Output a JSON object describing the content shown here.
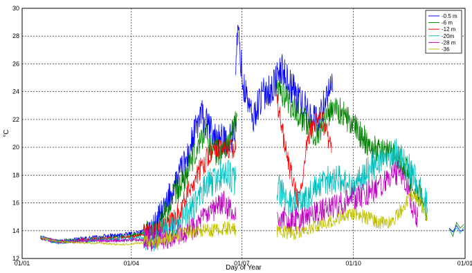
{
  "chart_data": {
    "type": "line",
    "title": "",
    "xlabel": "Day of Year",
    "ylabel": "°C",
    "xlim": [
      0,
      365
    ],
    "ylim": [
      12,
      30
    ],
    "grid": true,
    "legend_position": "top-right",
    "x_ticks": [
      {
        "value": 0,
        "label": "01/01"
      },
      {
        "value": 90,
        "label": "01/04"
      },
      {
        "value": 181,
        "label": "01/07"
      },
      {
        "value": 273,
        "label": "01/10"
      },
      {
        "value": 365,
        "label": "01/01"
      }
    ],
    "y_ticks": [
      12,
      14,
      16,
      18,
      20,
      22,
      24,
      26,
      28,
      30
    ],
    "series": [
      {
        "name": "-0.5 m",
        "color": "#0000ff",
        "segments": [
          [
            [
              15,
              13.6
            ],
            [
              20,
              13.4
            ],
            [
              25,
              13.3
            ],
            [
              30,
              13.2
            ],
            [
              60,
              13.5
            ],
            [
              85,
              13.7
            ],
            [
              108,
              14.0
            ],
            [
              112,
              14.6
            ],
            [
              116,
              15.2
            ],
            [
              120,
              16.0
            ],
            [
              124,
              17.0
            ],
            [
              128,
              17.6
            ],
            [
              132,
              18.4
            ],
            [
              136,
              19.2
            ],
            [
              140,
              20.4
            ],
            [
              144,
              21.5
            ],
            [
              148,
              22.4
            ],
            [
              150,
              21.8
            ],
            [
              154,
              21.4
            ],
            [
              158,
              20.8
            ],
            [
              162,
              20.6
            ],
            [
              166,
              20.4
            ],
            [
              170,
              20.5
            ],
            [
              174,
              20.7
            ],
            [
              176,
              21.5
            ]
          ],
          [
            [
              176,
              26.0
            ],
            [
              177,
              27.2
            ],
            [
              178,
              28.4
            ],
            [
              179,
              27.6
            ],
            [
              180,
              26.4
            ],
            [
              181,
              25.6
            ],
            [
              182,
              24.2
            ],
            [
              184,
              24.0
            ],
            [
              186,
              23.4
            ],
            [
              188,
              22.6
            ],
            [
              190,
              21.8
            ],
            [
              193,
              22.8
            ],
            [
              196,
              23.4
            ],
            [
              199,
              23.8
            ],
            [
              202,
              24.2
            ],
            [
              205,
              24.0
            ],
            [
              208,
              24.6
            ],
            [
              211,
              25.2
            ],
            [
              214,
              25.6
            ],
            [
              217,
              25.2
            ],
            [
              220,
              24.6
            ],
            [
              223,
              24.2
            ],
            [
              226,
              23.8
            ],
            [
              229,
              23.4
            ],
            [
              232,
              23.0
            ],
            [
              235,
              22.6
            ],
            [
              238,
              22.2
            ],
            [
              241,
              22.0
            ],
            [
              244,
              21.8
            ],
            [
              247,
              22.6
            ],
            [
              250,
              23.6
            ],
            [
              253,
              24.4
            ],
            [
              256,
              24.0
            ]
          ]
        ]
      },
      {
        "name": "-6 m",
        "color": "#008000",
        "segments": [
          [
            [
              15,
              13.5
            ],
            [
              30,
              13.2
            ],
            [
              60,
              13.4
            ],
            [
              85,
              13.6
            ],
            [
              108,
              13.9
            ],
            [
              115,
              14.8
            ],
            [
              120,
              15.6
            ],
            [
              126,
              16.6
            ],
            [
              132,
              17.4
            ],
            [
              138,
              18.6
            ],
            [
              144,
              19.8
            ],
            [
              150,
              21.2
            ],
            [
              154,
              20.4
            ],
            [
              158,
              19.8
            ],
            [
              162,
              19.6
            ],
            [
              166,
              19.8
            ],
            [
              170,
              20.4
            ],
            [
              174,
              21.2
            ],
            [
              177,
              22.2
            ]
          ],
          [
            [
              210,
              24.2
            ],
            [
              214,
              24.0
            ],
            [
              218,
              23.6
            ],
            [
              222,
              23.0
            ],
            [
              226,
              22.6
            ],
            [
              230,
              22.2
            ],
            [
              234,
              21.8
            ],
            [
              238,
              21.2
            ],
            [
              242,
              21.0
            ],
            [
              246,
              21.4
            ],
            [
              250,
              22.0
            ],
            [
              254,
              22.6
            ],
            [
              258,
              23.0
            ],
            [
              262,
              22.6
            ],
            [
              266,
              22.2
            ],
            [
              270,
              21.8
            ],
            [
              274,
              21.4
            ],
            [
              278,
              21.0
            ],
            [
              282,
              20.6
            ],
            [
              286,
              20.2
            ],
            [
              290,
              20.0
            ],
            [
              294,
              19.8
            ],
            [
              298,
              19.7
            ],
            [
              302,
              19.8
            ],
            [
              306,
              19.6
            ],
            [
              310,
              19.4
            ],
            [
              314,
              18.8
            ],
            [
              318,
              18.2
            ],
            [
              322,
              17.4
            ],
            [
              326,
              16.8
            ],
            [
              330,
              16.0
            ],
            [
              334,
              15.4
            ]
          ]
        ]
      },
      {
        "name": "-12 m",
        "color": "#ff0000",
        "segments": [
          [
            [
              15,
              13.5
            ],
            [
              30,
              13.2
            ],
            [
              60,
              13.4
            ],
            [
              85,
              13.5
            ],
            [
              108,
              13.8
            ],
            [
              114,
              14.0
            ],
            [
              120,
              14.3
            ],
            [
              126,
              15.0
            ],
            [
              132,
              15.8
            ],
            [
              136,
              16.6
            ],
            [
              140,
              17.4
            ],
            [
              144,
              18.0
            ],
            [
              148,
              18.6
            ],
            [
              152,
              19.2
            ],
            [
              156,
              19.6
            ],
            [
              160,
              19.8
            ],
            [
              164,
              19.9
            ],
            [
              168,
              20.0
            ],
            [
              172,
              20.0
            ],
            [
              176,
              19.8
            ]
          ],
          [
            [
              210,
              23.2
            ],
            [
              213,
              22.0
            ],
            [
              216,
              20.4
            ],
            [
              219,
              19.0
            ],
            [
              222,
              18.0
            ],
            [
              225,
              16.8
            ],
            [
              228,
              16.2
            ],
            [
              231,
              17.6
            ],
            [
              234,
              19.6
            ],
            [
              237,
              21.0
            ],
            [
              240,
              21.8
            ],
            [
              243,
              22.2
            ],
            [
              246,
              22.0
            ],
            [
              249,
              21.6
            ],
            [
              252,
              20.8
            ],
            [
              255,
              19.6
            ]
          ]
        ]
      },
      {
        "name": "-20m",
        "color": "#00bfbf",
        "segments": [
          [
            [
              15,
              13.5
            ],
            [
              30,
              13.2
            ],
            [
              60,
              13.3
            ],
            [
              85,
              13.4
            ],
            [
              108,
              13.6
            ],
            [
              116,
              13.8
            ],
            [
              124,
              14.2
            ],
            [
              132,
              14.8
            ],
            [
              140,
              15.6
            ],
            [
              146,
              16.4
            ],
            [
              152,
              17.2
            ],
            [
              158,
              17.6
            ],
            [
              164,
              18.0
            ],
            [
              168,
              18.2
            ],
            [
              172,
              17.8
            ],
            [
              176,
              17.6
            ]
          ],
          [
            [
              210,
              17.2
            ],
            [
              216,
              16.4
            ],
            [
              222,
              16.0
            ],
            [
              228,
              16.0
            ],
            [
              234,
              16.4
            ],
            [
              240,
              16.8
            ],
            [
              246,
              17.2
            ],
            [
              252,
              17.6
            ],
            [
              258,
              17.8
            ],
            [
              264,
              17.6
            ],
            [
              270,
              17.2
            ],
            [
              276,
              17.4
            ],
            [
              282,
              18.0
            ],
            [
              288,
              18.6
            ],
            [
              294,
              19.0
            ],
            [
              300,
              19.4
            ],
            [
              306,
              19.6
            ],
            [
              312,
              19.4
            ],
            [
              318,
              18.6
            ],
            [
              324,
              17.6
            ],
            [
              330,
              16.6
            ],
            [
              334,
              15.6
            ]
          ]
        ]
      },
      {
        "name": "-28 m",
        "color": "#bf00bf",
        "segments": [
          [
            [
              15,
              13.5
            ],
            [
              30,
              13.2
            ],
            [
              60,
              13.3
            ],
            [
              85,
              13.3
            ],
            [
              108,
              13.4
            ],
            [
              120,
              13.6
            ],
            [
              132,
              14.0
            ],
            [
              140,
              14.2
            ],
            [
              148,
              14.8
            ],
            [
              156,
              15.2
            ],
            [
              162,
              15.8
            ],
            [
              166,
              16.0
            ],
            [
              170,
              15.6
            ],
            [
              174,
              15.0
            ],
            [
              176,
              14.8
            ]
          ],
          [
            [
              210,
              15.2
            ],
            [
              216,
              14.8
            ],
            [
              222,
              14.6
            ],
            [
              228,
              14.8
            ],
            [
              234,
              15.0
            ],
            [
              240,
              15.2
            ],
            [
              246,
              15.4
            ],
            [
              252,
              15.6
            ],
            [
              258,
              15.8
            ],
            [
              264,
              16.0
            ],
            [
              270,
              16.2
            ],
            [
              276,
              16.4
            ],
            [
              282,
              16.6
            ],
            [
              288,
              16.8
            ],
            [
              294,
              17.2
            ],
            [
              300,
              17.6
            ],
            [
              306,
              18.0
            ],
            [
              310,
              18.2
            ],
            [
              314,
              17.8
            ],
            [
              318,
              16.8
            ],
            [
              322,
              15.8
            ],
            [
              326,
              15.0
            ]
          ]
        ]
      },
      {
        "name": "-36",
        "color": "#bfbf00",
        "segments": [
          [
            [
              15,
              13.5
            ],
            [
              30,
              13.2
            ],
            [
              60,
              13.1
            ],
            [
              85,
              13.0
            ],
            [
              108,
              13.2
            ],
            [
              116,
              13.4
            ],
            [
              124,
              13.6
            ],
            [
              132,
              13.8
            ],
            [
              140,
              14.0
            ],
            [
              148,
              14.0
            ],
            [
              156,
              14.0
            ],
            [
              164,
              14.1
            ],
            [
              170,
              14.2
            ],
            [
              176,
              14.1
            ]
          ],
          [
            [
              210,
              14.0
            ],
            [
              216,
              13.9
            ],
            [
              222,
              13.8
            ],
            [
              228,
              13.9
            ],
            [
              234,
              14.0
            ],
            [
              240,
              14.2
            ],
            [
              246,
              14.4
            ],
            [
              252,
              14.6
            ],
            [
              258,
              14.8
            ],
            [
              264,
              15.0
            ],
            [
              270,
              15.2
            ],
            [
              276,
              15.2
            ],
            [
              282,
              15.0
            ],
            [
              288,
              14.8
            ],
            [
              294,
              14.6
            ],
            [
              300,
              14.6
            ],
            [
              306,
              14.8
            ],
            [
              312,
              15.4
            ],
            [
              318,
              16.2
            ],
            [
              324,
              16.6
            ],
            [
              328,
              16.0
            ],
            [
              332,
              15.2
            ],
            [
              334,
              14.8
            ]
          ]
        ]
      }
    ],
    "late_points": {
      "colors": [
        "#00bfbf",
        "#008000",
        "#0000ff"
      ],
      "points": [
        [
          352,
          14.2
        ],
        [
          355,
          13.8
        ],
        [
          358,
          14.4
        ],
        [
          361,
          14.0
        ],
        [
          364,
          14.2
        ]
      ]
    }
  }
}
